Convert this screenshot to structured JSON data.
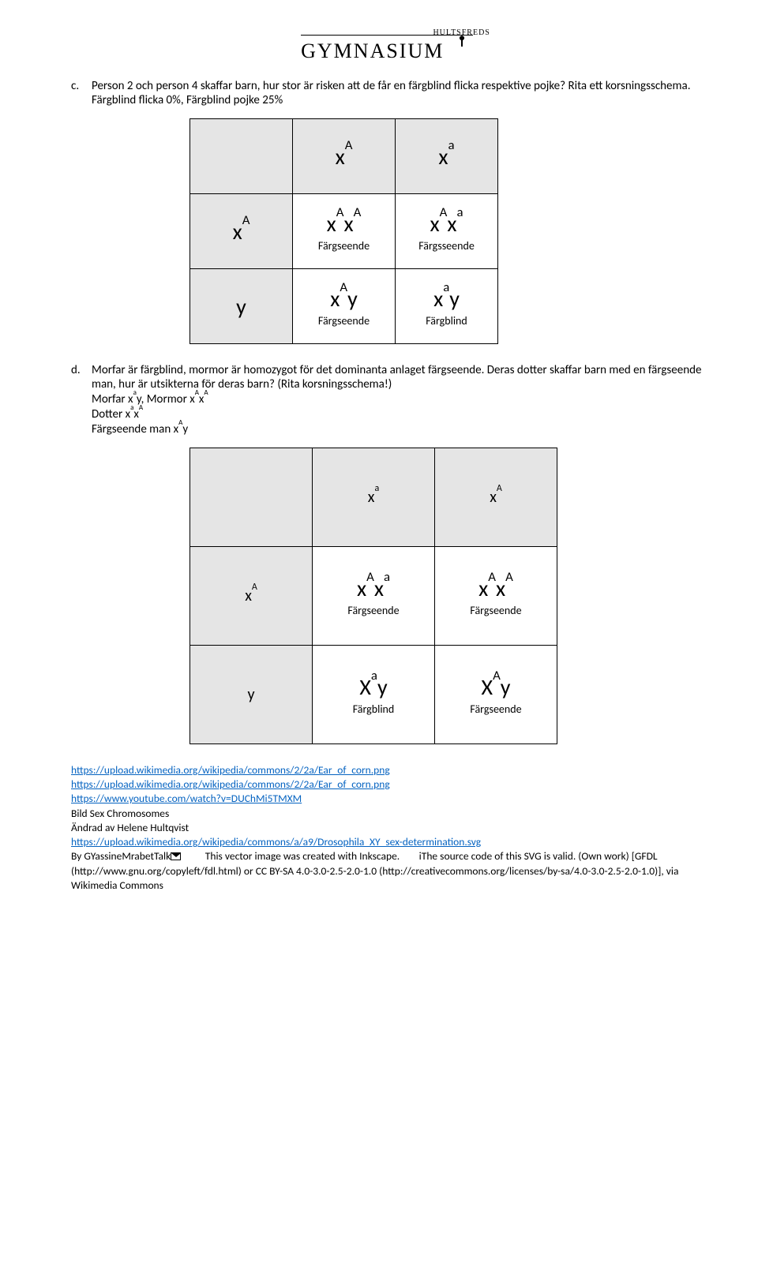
{
  "logo": {
    "main": "GYMNASIUM",
    "sub": "HULTSFREDS"
  },
  "qc": {
    "letter": "c.",
    "text": "Person 2 och person 4 skaffar barn, hur stor är risken att de får en färgblind flicka respektive pojke? Rita ett korsningsschema.",
    "answer": "Färgblind flicka 0%, Färgblind pojke 25%"
  },
  "punnett1": {
    "top1": {
      "b": "x",
      "s": "A"
    },
    "top2": {
      "b": "x",
      "s": "a"
    },
    "left1": {
      "b": "x",
      "s": "A"
    },
    "left2": {
      "b": "y",
      "s": ""
    },
    "c11": {
      "b1": "x",
      "s1": "A",
      "b2": "x",
      "s2": "A",
      "p": "Färgseende"
    },
    "c12": {
      "b1": "x",
      "s1": "A",
      "b2": "x",
      "s2": "a",
      "p": "Färgsseende"
    },
    "c21": {
      "b1": "x",
      "s1": "A",
      "b2": "y",
      "s2": "",
      "p": "Färgseende"
    },
    "c22": {
      "b1": "x",
      "s1": "a",
      "b2": "y",
      "s2": "",
      "p": "Färgblind"
    }
  },
  "qd": {
    "letter": "d.",
    "text": "Morfar är färgblind, mormor är homozygot för det dominanta anlaget färgseende. Deras dotter skaffar barn med en färgseende man, hur är utsikterna för deras barn? (Rita korsningsschema!)",
    "l1a": "Morfar x",
    "l1a_s": "a",
    "l1b": "y, Mormor x",
    "l1b_s": "A",
    "l1c": "x",
    "l1c_s": "A",
    "l2a": "Dotter x",
    "l2a_s": "a",
    "l2b": "x",
    "l2b_s": "A",
    "l3a": "Färgseende man x",
    "l3a_s": "A",
    "l3b": "y"
  },
  "punnett2": {
    "top1": {
      "b": "x",
      "s": "a"
    },
    "top2": {
      "b": "x",
      "s": "A"
    },
    "left1": {
      "b": "x",
      "s": "A"
    },
    "left2": {
      "b": "y",
      "s": ""
    },
    "c11": {
      "b1": "x",
      "s1": "A",
      "b2": "x",
      "s2": "a",
      "p": "Färgseende"
    },
    "c12": {
      "b1": "x",
      "s1": "A",
      "b2": "x",
      "s2": "A",
      "p": "Färgseende"
    },
    "c21": {
      "b1": "X",
      "s1": "a",
      "b2": "y",
      "s2": "",
      "p": "Färgblind"
    },
    "c22": {
      "b1": "X",
      "s1": "A",
      "b2": "y",
      "s2": "",
      "p": "Färgseende"
    }
  },
  "refs": {
    "u1": "https://upload.wikimedia.org/wikipedia/commons/2/2a/Ear_of_corn.png",
    "u2": "https://upload.wikimedia.org/wikipedia/commons/2/2a/Ear_of_corn.png",
    "u3": "https://www.youtube.com/watch?v=DUChMi5TMXM",
    "t1": "Bild Sex Chromosomes",
    "t2": "Ändrad av Helene Hultqvist",
    "u4": "https://upload.wikimedia.org/wikipedia/commons/a/a9/Drosophila_XY_sex-determination.svg",
    "cap1": "By GYassineMrabetTalk",
    "cap2": "This vector image was created with Inkscape.",
    "cap3": "iThe source code of this SVG is valid. (Own work) [GFDL (http://www.gnu.org/copyleft/fdl.html) or CC BY-SA 4.0-3.0-2.5-2.0-1.0 (http://creativecommons.org/licenses/by-sa/4.0-3.0-2.5-2.0-1.0)], via Wikimedia Commons"
  }
}
